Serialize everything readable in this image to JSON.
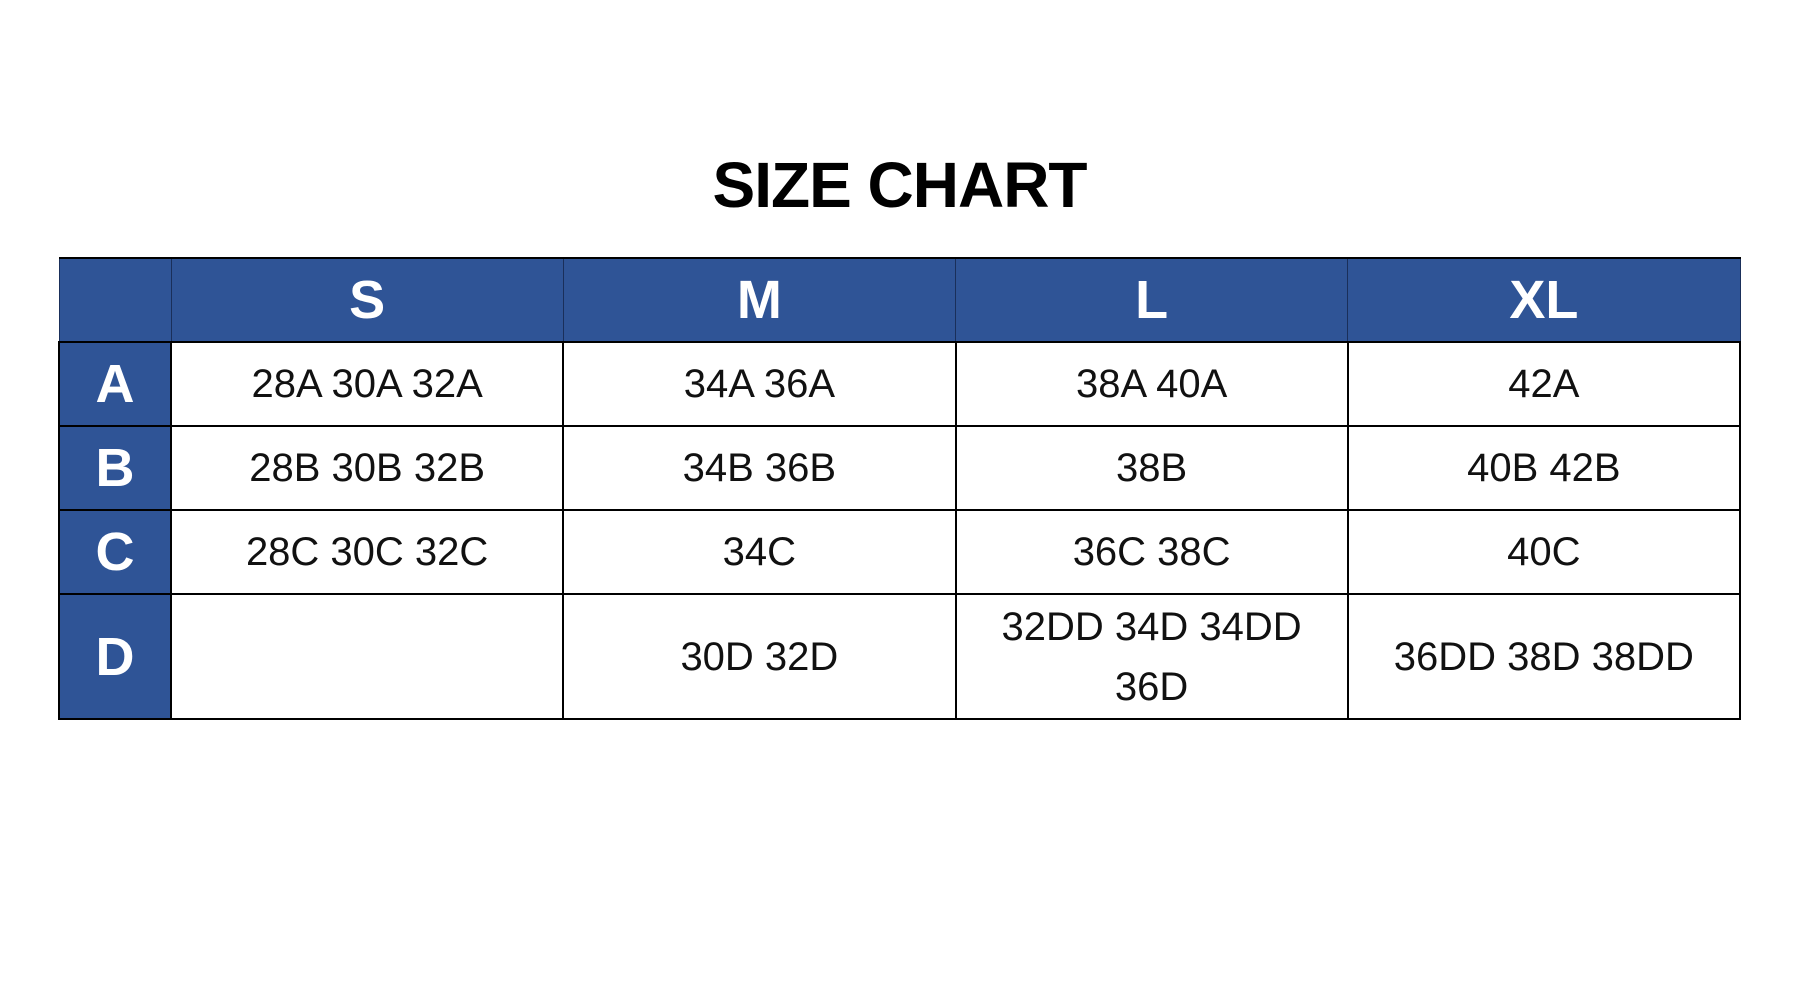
{
  "title": "SIZE CHART",
  "header_color": "#2F5496",
  "columns": [
    "",
    "S",
    "M",
    "L",
    "XL"
  ],
  "rows": [
    {
      "label": "A",
      "cells": [
        "28A 30A 32A",
        "34A 36A",
        "38A 40A",
        "42A"
      ]
    },
    {
      "label": "B",
      "cells": [
        "28B 30B 32B",
        "34B 36B",
        "38B",
        "40B 42B"
      ]
    },
    {
      "label": "C",
      "cells": [
        "28C 30C 32C",
        "34C",
        "36C 38C",
        "40C"
      ]
    },
    {
      "label": "D",
      "cells": [
        "",
        "30D 32D",
        "32DD 34D 34DD 36D",
        "36DD 38D 38DD"
      ]
    }
  ]
}
